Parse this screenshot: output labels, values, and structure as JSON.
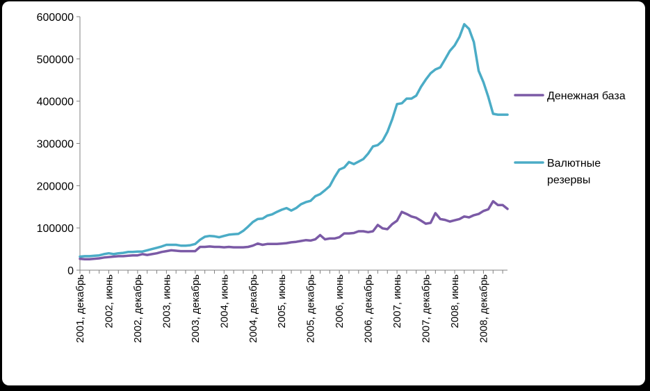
{
  "chart_data": {
    "type": "line",
    "title": "",
    "xlabel": "",
    "ylabel": "",
    "ylim": [
      0,
      600000
    ],
    "yticks": [
      "0",
      "100000",
      "200000",
      "300000",
      "400000",
      "500000",
      "600000"
    ],
    "x_tick_labels": [
      "2001, декабрь",
      "2002, июнь",
      "2002, декабрь",
      "2003, июнь",
      "2003, декабрь",
      "2004, июнь",
      "2004, декабрь",
      "2005, июнь",
      "2005, декабрь",
      "2006, июнь",
      "2006, декабрь",
      "2007, июнь",
      "2007, декабрь",
      "2008, июнь",
      "2008, декабрь"
    ],
    "grid": false,
    "legend_position": "right",
    "series": [
      {
        "name": "Денежная база",
        "color": "#7b5aa6",
        "values": [
          27000,
          26000,
          26000,
          27000,
          28000,
          30000,
          31000,
          32000,
          33000,
          33000,
          34000,
          35000,
          35000,
          38000,
          36000,
          38000,
          40000,
          43000,
          45000,
          47000,
          46000,
          45000,
          45000,
          45000,
          45000,
          55000,
          55000,
          56000,
          55000,
          55000,
          54000,
          55000,
          54000,
          54000,
          54000,
          55000,
          58000,
          63000,
          60000,
          62000,
          62000,
          62000,
          63000,
          64000,
          66000,
          67000,
          69000,
          71000,
          70000,
          73000,
          83000,
          73000,
          75000,
          75000,
          78000,
          87000,
          87000,
          88000,
          92000,
          92000,
          90000,
          92000,
          107000,
          99000,
          97000,
          109000,
          117000,
          138000,
          133000,
          127000,
          124000,
          117000,
          110000,
          112000,
          135000,
          121000,
          119000,
          115000,
          118000,
          121000,
          127000,
          125000,
          130000,
          133000,
          140000,
          144000,
          163000,
          154000,
          154000,
          145000
        ]
      },
      {
        "name": "Валютные резервы",
        "color": "#4bacc6",
        "values": [
          32000,
          33000,
          33000,
          34000,
          35000,
          38000,
          40000,
          38000,
          40000,
          41000,
          43000,
          43000,
          44000,
          44000,
          47000,
          50000,
          53000,
          56000,
          60000,
          60000,
          60000,
          58000,
          58000,
          59000,
          62000,
          72000,
          79000,
          81000,
          80000,
          78000,
          81000,
          84000,
          85000,
          86000,
          93000,
          103000,
          114000,
          121000,
          122000,
          129000,
          132000,
          138000,
          143000,
          147000,
          141000,
          147000,
          156000,
          161000,
          164000,
          175000,
          180000,
          189000,
          199000,
          220000,
          238000,
          243000,
          256000,
          251000,
          257000,
          263000,
          276000,
          293000,
          296000,
          306000,
          327000,
          357000,
          393000,
          395000,
          406000,
          406000,
          413000,
          434000,
          451000,
          466000,
          475000,
          480000,
          499000,
          519000,
          532000,
          552000,
          582000,
          571000,
          540000,
          472000,
          445000,
          410000,
          370000,
          368000,
          368000,
          368000
        ]
      }
    ]
  }
}
